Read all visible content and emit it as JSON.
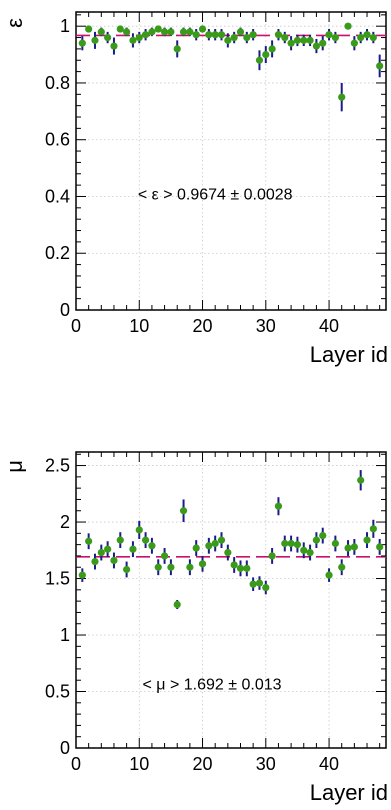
{
  "chart_data": [
    {
      "type": "scatter",
      "ylabel": "ε",
      "xlabel": "Layer id",
      "xlim": [
        0,
        49
      ],
      "ylim": [
        0,
        1.05
      ],
      "xticks": [
        0,
        10,
        20,
        30,
        40
      ],
      "yticks": [
        0,
        0.2,
        0.4,
        0.6,
        0.8,
        1
      ],
      "ytick_labels": [
        "0",
        "0.2",
        "0.4",
        "0.6",
        "0.8",
        "1"
      ],
      "grid": true,
      "mean_line": 0.9674,
      "annotation": "< ε > 0.9674 ± 0.0028",
      "annotation_pos": {
        "x": 22,
        "y": 0.39
      },
      "x": [
        1,
        2,
        3,
        4,
        5,
        6,
        7,
        8,
        9,
        10,
        11,
        12,
        13,
        14,
        15,
        16,
        17,
        18,
        19,
        20,
        21,
        22,
        23,
        24,
        25,
        26,
        27,
        28,
        29,
        30,
        31,
        32,
        33,
        34,
        35,
        36,
        37,
        38,
        39,
        40,
        41,
        42,
        43,
        44,
        45,
        46,
        47,
        48
      ],
      "values": [
        0.94,
        0.99,
        0.95,
        0.98,
        0.96,
        0.93,
        0.99,
        0.98,
        0.95,
        0.96,
        0.97,
        0.98,
        0.99,
        0.98,
        0.98,
        0.92,
        0.98,
        0.98,
        0.97,
        0.99,
        0.97,
        0.97,
        0.97,
        0.95,
        0.96,
        0.98,
        0.96,
        0.97,
        0.88,
        0.9,
        0.92,
        0.97,
        0.96,
        0.94,
        0.95,
        0.95,
        0.95,
        0.93,
        0.94,
        0.97,
        0.96,
        0.75,
        1.0,
        0.94,
        0.96,
        0.97,
        0.96,
        0.86
      ],
      "errors": [
        0.025,
        0.01,
        0.03,
        0.015,
        0.02,
        0.03,
        0.01,
        0.015,
        0.025,
        0.02,
        0.02,
        0.015,
        0.01,
        0.015,
        0.015,
        0.03,
        0.015,
        0.015,
        0.02,
        0.01,
        0.02,
        0.02,
        0.02,
        0.025,
        0.02,
        0.015,
        0.02,
        0.02,
        0.035,
        0.03,
        0.03,
        0.02,
        0.02,
        0.025,
        0.02,
        0.02,
        0.02,
        0.025,
        0.025,
        0.02,
        0.02,
        0.05,
        0.005,
        0.025,
        0.02,
        0.02,
        0.02,
        0.04
      ],
      "marker_color": "#3a9a1a",
      "errorbar_color": "#1a1a8c",
      "mean_color": "#c8106e"
    },
    {
      "type": "scatter",
      "ylabel": "μ",
      "xlabel": "Layer id",
      "xlim": [
        0,
        49
      ],
      "ylim": [
        0,
        2.62
      ],
      "xticks": [
        0,
        10,
        20,
        30,
        40
      ],
      "yticks": [
        0,
        0.5,
        1,
        1.5,
        2,
        2.5
      ],
      "ytick_labels": [
        "0",
        "0.5",
        "1",
        "1.5",
        "2",
        "2.5"
      ],
      "grid": true,
      "mean_line": 1.692,
      "annotation": "< μ > 1.692 ± 0.013",
      "annotation_pos": {
        "x": 21.5,
        "y": 0.52
      },
      "x": [
        1,
        2,
        3,
        4,
        5,
        6,
        7,
        8,
        9,
        10,
        11,
        12,
        13,
        14,
        15,
        16,
        17,
        18,
        19,
        20,
        21,
        22,
        23,
        24,
        25,
        26,
        27,
        28,
        29,
        30,
        31,
        32,
        33,
        34,
        35,
        36,
        37,
        38,
        39,
        40,
        41,
        42,
        43,
        44,
        45,
        46,
        47,
        48
      ],
      "values": [
        1.53,
        1.83,
        1.65,
        1.73,
        1.76,
        1.66,
        1.84,
        1.58,
        1.76,
        1.93,
        1.84,
        1.79,
        1.6,
        1.7,
        1.6,
        1.27,
        2.1,
        1.6,
        1.77,
        1.63,
        1.79,
        1.81,
        1.84,
        1.73,
        1.62,
        1.59,
        1.59,
        1.45,
        1.46,
        1.42,
        1.7,
        2.14,
        1.81,
        1.81,
        1.8,
        1.75,
        1.73,
        1.84,
        1.88,
        1.53,
        1.81,
        1.6,
        1.77,
        1.78,
        2.37,
        1.84,
        1.94,
        1.78
      ],
      "errors": [
        0.06,
        0.07,
        0.07,
        0.07,
        0.07,
        0.07,
        0.07,
        0.07,
        0.07,
        0.08,
        0.07,
        0.07,
        0.07,
        0.07,
        0.07,
        0.04,
        0.1,
        0.07,
        0.07,
        0.07,
        0.07,
        0.07,
        0.07,
        0.07,
        0.07,
        0.07,
        0.07,
        0.06,
        0.06,
        0.06,
        0.07,
        0.08,
        0.07,
        0.07,
        0.07,
        0.07,
        0.07,
        0.07,
        0.07,
        0.06,
        0.07,
        0.07,
        0.07,
        0.07,
        0.09,
        0.07,
        0.08,
        0.07
      ],
      "marker_color": "#3a9a1a",
      "errorbar_color": "#1a1a8c",
      "mean_color": "#c8106e"
    }
  ]
}
